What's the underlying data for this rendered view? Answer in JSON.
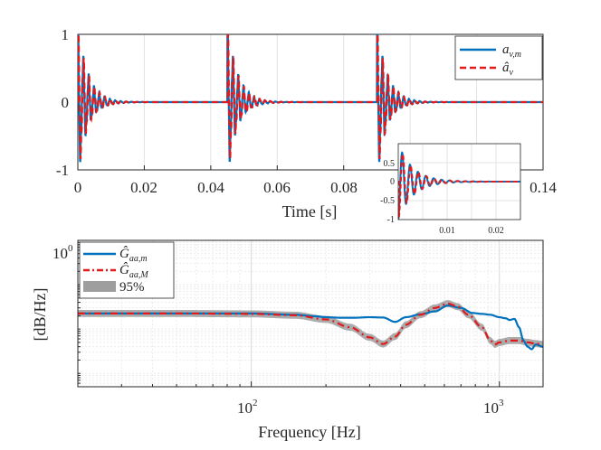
{
  "chart_data": [
    {
      "type": "line",
      "panel": "top",
      "xlabel": "Time [s]",
      "ylabel": "",
      "xlim": [
        0,
        0.14
      ],
      "ylim": [
        -1,
        1
      ],
      "xticks": [
        0,
        0.02,
        0.04,
        0.06,
        0.08,
        0.14
      ],
      "xtick_labels": [
        "0",
        "0.02",
        "0.04",
        "0.06",
        "0.08",
        "0.14"
      ],
      "yticks": [
        1,
        0,
        -1
      ],
      "ytick_labels": [
        "1",
        "0",
        "-1"
      ],
      "grid": true,
      "legend_position": "top-right",
      "impulse_times": [
        0,
        0.045,
        0.09
      ],
      "decay_time_constant": 0.003,
      "oscillation_frequency_hz": 620,
      "series": [
        {
          "name": "a_{v,m}",
          "legend_main": "a",
          "legend_sub": "v,m",
          "color": "#0072BD",
          "style": "solid"
        },
        {
          "name": "â_v",
          "legend_main": "â",
          "legend_sub": "v",
          "color": "#E31A1C",
          "style": "dashed"
        }
      ]
    },
    {
      "type": "line",
      "panel": "inset",
      "xlim": [
        0,
        0.025
      ],
      "ylim": [
        -1,
        1
      ],
      "xticks": [
        0.01,
        0.02
      ],
      "xtick_labels": [
        "0.01",
        "0.02"
      ],
      "yticks": [
        0.5,
        0,
        -0.5,
        -1
      ],
      "ytick_labels": [
        "0.5",
        "0",
        "-0.5",
        "-1"
      ],
      "grid": true
    },
    {
      "type": "line",
      "panel": "bottom",
      "xlabel": "Frequency [Hz]",
      "ylabel": "[dB/Hz]",
      "xscale": "log",
      "yscale": "log",
      "xlim": [
        20,
        1500
      ],
      "ylim": [
        0.0005,
        1
      ],
      "xticks": [
        100,
        1000
      ],
      "xtick_labels": [
        "10",
        "10"
      ],
      "xtick_exponents": [
        "2",
        "3"
      ],
      "ytick_label": "10",
      "ytick_exponent": "0",
      "grid": true,
      "legend_position": "top-left",
      "series": [
        {
          "name": "Ĝ_{aa,m}",
          "legend_main": "Ĝ",
          "legend_sub": "aa,m",
          "color": "#0072BD",
          "style": "solid",
          "x": [
            20,
            50,
            100,
            150,
            180,
            200,
            230,
            260,
            300,
            340,
            380,
            420,
            480,
            550,
            620,
            700,
            780,
            850,
            920,
            1000,
            1060,
            1100,
            1150,
            1200,
            1250,
            1300,
            1350,
            1400,
            1500
          ],
          "y": [
            0.0225,
            0.0225,
            0.0225,
            0.021,
            0.0195,
            0.0185,
            0.018,
            0.018,
            0.0185,
            0.0182,
            0.0145,
            0.0185,
            0.0215,
            0.025,
            0.034,
            0.03,
            0.023,
            0.022,
            0.021,
            0.0185,
            0.0175,
            0.016,
            0.017,
            0.011,
            0.0055,
            0.004,
            0.0035,
            0.0045,
            0.004
          ]
        },
        {
          "name": "Ĝ_{aa,M}",
          "legend_main": "Ĝ",
          "legend_sub": "aa,M",
          "color": "#E31A1C",
          "style": "dashed",
          "x": [
            20,
            50,
            100,
            150,
            200,
            250,
            300,
            340,
            380,
            420,
            480,
            550,
            620,
            680,
            750,
            850,
            920,
            960,
            1000,
            1100,
            1200,
            1300,
            1400,
            1500
          ],
          "y": [
            0.0225,
            0.0225,
            0.022,
            0.0205,
            0.0165,
            0.011,
            0.0065,
            0.0046,
            0.0068,
            0.0125,
            0.021,
            0.03,
            0.0375,
            0.032,
            0.021,
            0.011,
            0.0055,
            0.0045,
            0.005,
            0.0055,
            0.0055,
            0.005,
            0.0047,
            0.0045
          ]
        },
        {
          "name": "95%",
          "legend_main": "95%",
          "color": "#9E9E9E",
          "style": "band",
          "band_factor": 1.2
        }
      ]
    }
  ]
}
